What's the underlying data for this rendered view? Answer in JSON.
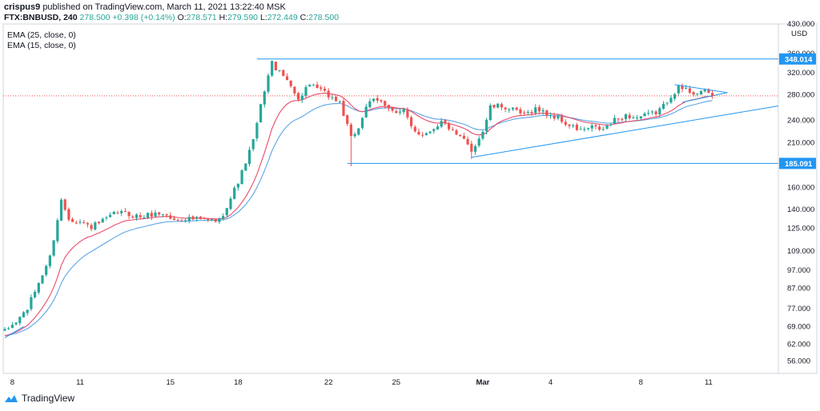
{
  "header": {
    "author": "crispus9",
    "published_text": "published on TradingView.com, March 11, 2021 13:22:40 MSK",
    "symbol": "FTX:BNBUSD, 240",
    "last": "278.500",
    "change": "+0.398 (+0.14%)",
    "open_label": "O:",
    "open": "278.571",
    "high_label": "H:",
    "high": "279.590",
    "low_label": "L:",
    "low": "272.449",
    "close_label": "C:",
    "close": "278.500"
  },
  "indicators": [
    {
      "label": "EMA (25, close, 0)",
      "color": "#2196f3"
    },
    {
      "label": "EMA (15, close, 0)",
      "color": "#e91e63"
    }
  ],
  "brand": {
    "name": "TradingView"
  },
  "colors": {
    "up": "#26a69a",
    "down": "#ef5350",
    "ema25": "#5aa5e6",
    "ema15": "#e84b6a",
    "drawing": "#2196f3",
    "price_line": "#ef5350"
  },
  "chart_data": {
    "type": "candlestick",
    "scale": "log",
    "currency": "USD",
    "ylim": [
      52,
      430
    ],
    "y_ticks": [
      56,
      62,
      69,
      77,
      87,
      97,
      109,
      125,
      140,
      160,
      185,
      210,
      240,
      280,
      320,
      360,
      430
    ],
    "y_tick_labels": [
      "56.000",
      "62.000",
      "69.000",
      "77.000",
      "87.000",
      "97.000",
      "109.000",
      "125.000",
      "140.000",
      "160.000",
      "185.000",
      "210.000",
      "240.000",
      "280.000",
      "320.000",
      "360.000",
      "430.000"
    ],
    "x_ticks": [
      {
        "label": "8",
        "bar": 2
      },
      {
        "label": "11",
        "bar": 20
      },
      {
        "label": "15",
        "bar": 44
      },
      {
        "label": "18",
        "bar": 62
      },
      {
        "label": "22",
        "bar": 86
      },
      {
        "label": "25",
        "bar": 104
      },
      {
        "label": "Mar",
        "bar": 127
      },
      {
        "label": "4",
        "bar": 145
      },
      {
        "label": "8",
        "bar": 169
      },
      {
        "label": "11",
        "bar": 187
      }
    ],
    "price_labels": [
      {
        "value": 348.014,
        "text": "348.014"
      },
      {
        "value": 185.091,
        "text": "185.091"
      }
    ],
    "last_price": 278.5,
    "horizontal_lines": [
      {
        "value": 348.014,
        "from_bar": 67
      },
      {
        "value": 185.091,
        "from_bar": 91
      }
    ],
    "trend_lines": [
      {
        "from": {
          "bar": 0,
          "value": 64.5
        },
        "to": {
          "bar": 5,
          "value": 69
        }
      },
      {
        "from": {
          "bar": 124,
          "value": 192
        },
        "to": {
          "bar": 206,
          "value": 262
        }
      },
      {
        "from": {
          "bar": 178,
          "value": 298
        },
        "to": {
          "bar": 192,
          "value": 284
        }
      },
      {
        "from": {
          "bar": 180,
          "value": 268
        },
        "to": {
          "bar": 192,
          "value": 284
        }
      }
    ],
    "waypoints": [
      [
        0,
        67
      ],
      [
        3,
        71
      ],
      [
        6,
        77
      ],
      [
        9,
        90
      ],
      [
        12,
        105
      ],
      [
        15,
        148
      ],
      [
        17,
        133
      ],
      [
        20,
        130
      ],
      [
        23,
        126
      ],
      [
        27,
        132
      ],
      [
        30,
        138
      ],
      [
        33,
        136
      ],
      [
        36,
        134
      ],
      [
        39,
        136
      ],
      [
        42,
        137
      ],
      [
        45,
        131
      ],
      [
        48,
        133
      ],
      [
        51,
        132
      ],
      [
        54,
        131
      ],
      [
        57,
        131
      ],
      [
        60,
        150
      ],
      [
        63,
        175
      ],
      [
        66,
        212
      ],
      [
        69,
        290
      ],
      [
        71,
        340
      ],
      [
        73,
        320
      ],
      [
        76,
        300
      ],
      [
        78,
        270
      ],
      [
        80,
        293
      ],
      [
        83,
        292
      ],
      [
        85,
        283
      ],
      [
        87,
        275
      ],
      [
        89,
        268
      ],
      [
        92,
        215
      ],
      [
        94,
        230
      ],
      [
        96,
        262
      ],
      [
        98,
        270
      ],
      [
        100,
        268
      ],
      [
        102,
        262
      ],
      [
        104,
        250
      ],
      [
        106,
        253
      ],
      [
        108,
        232
      ],
      [
        110,
        222
      ],
      [
        112,
        222
      ],
      [
        114,
        230
      ],
      [
        116,
        238
      ],
      [
        118,
        230
      ],
      [
        120,
        218
      ],
      [
        122,
        213
      ],
      [
        124,
        200
      ],
      [
        127,
        225
      ],
      [
        129,
        260
      ],
      [
        132,
        262
      ],
      [
        135,
        255
      ],
      [
        138,
        248
      ],
      [
        141,
        258
      ],
      [
        144,
        250
      ],
      [
        147,
        243
      ],
      [
        150,
        232
      ],
      [
        153,
        226
      ],
      [
        156,
        230
      ],
      [
        159,
        227
      ],
      [
        162,
        240
      ],
      [
        165,
        247
      ],
      [
        168,
        244
      ],
      [
        171,
        248
      ],
      [
        173,
        252
      ],
      [
        175,
        262
      ],
      [
        177,
        280
      ],
      [
        179,
        292
      ],
      [
        181,
        289
      ],
      [
        183,
        284
      ],
      [
        185,
        286
      ],
      [
        187,
        282
      ],
      [
        188,
        278.5
      ]
    ],
    "spikes": [
      {
        "bar": 15,
        "high": 150
      },
      {
        "bar": 71,
        "high": 345
      },
      {
        "bar": 92,
        "low": 182
      },
      {
        "bar": 124,
        "low": 190
      }
    ]
  }
}
